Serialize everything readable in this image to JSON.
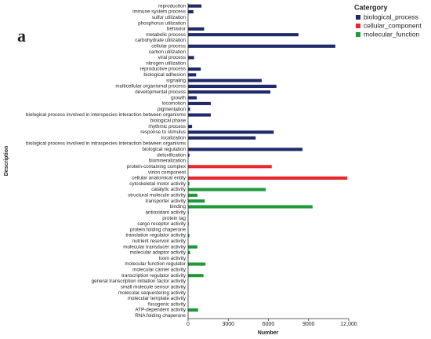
{
  "chart_data": {
    "type": "barh",
    "panel_label": "a",
    "y_label": "Description",
    "x_label": "Number",
    "legend_title": "Catergory",
    "legend_position": "top-right",
    "categories": [
      "reproduction",
      "immune system process",
      "sulfur utilization",
      "phosphorus utilization",
      "behavior",
      "metabolic process",
      "carbohydrate utilization",
      "cellular process",
      "carbon utilization",
      "viral process",
      "nitrogen utilization",
      "reproductive process",
      "biological adhesion",
      "signaling",
      "multicellular organismal process",
      "developmental process",
      "growth",
      "locomotion",
      "pigmentation",
      "biological process involved in interspecies interaction between organisms",
      "biological phase",
      "rhythmic process",
      "response to stimulus",
      "localization",
      "biological process involved in intraspecies interaction between organisms",
      "biological regulation",
      "detoxification",
      "biomineralization",
      "protein-containing complex",
      "virion component",
      "cellular anatomical entity",
      "cytoskeletal motor activity",
      "catalytic activity",
      "structural molecule activity",
      "transporter activity",
      "binding",
      "antioxidant activity",
      "protein tag",
      "cargo receptor activity",
      "protein folding chaperone",
      "translation regulator activity",
      "nutrient reservoir activity",
      "molecular transducer activity",
      "molecular adaptor activity",
      "toxin activity",
      "molecular function regulator",
      "molecular carrier activity",
      "transcription regulator activity",
      "general transcription initiation factor activity",
      "small molecule sensor activity",
      "molecular sequestering activity",
      "molecular template activity",
      "fusogenic activity",
      "ATP-dependent activity",
      "RNA folding chaperone"
    ],
    "series": [
      {
        "name": "biological_process",
        "color": "#1f2a6b",
        "values": [
          1000,
          400,
          0,
          0,
          1200,
          8250,
          0,
          11000,
          0,
          450,
          0,
          950,
          600,
          5500,
          6600,
          6150,
          650,
          1700,
          150,
          1700,
          0,
          300,
          6400,
          5050,
          0,
          8550,
          100,
          0,
          null,
          null,
          null,
          null,
          null,
          null,
          null,
          null,
          null,
          null,
          null,
          null,
          null,
          null,
          null,
          null,
          null,
          null,
          null,
          null,
          null,
          null,
          null,
          null,
          null,
          null,
          null
        ]
      },
      {
        "name": "cellular_component",
        "color": "#e8262b",
        "values": [
          null,
          null,
          null,
          null,
          null,
          null,
          null,
          null,
          null,
          null,
          null,
          null,
          null,
          null,
          null,
          null,
          null,
          null,
          null,
          null,
          null,
          null,
          null,
          null,
          null,
          null,
          null,
          null,
          6250,
          0,
          11900,
          null,
          null,
          null,
          null,
          null,
          null,
          null,
          null,
          null,
          null,
          null,
          null,
          null,
          null,
          null,
          null,
          null,
          null,
          null,
          null,
          null,
          null,
          null,
          null
        ]
      },
      {
        "name": "molecular_function",
        "color": "#1e9a3a",
        "values": [
          null,
          null,
          null,
          null,
          null,
          null,
          null,
          null,
          null,
          null,
          null,
          null,
          null,
          null,
          null,
          null,
          null,
          null,
          null,
          null,
          null,
          null,
          null,
          null,
          null,
          null,
          null,
          null,
          null,
          null,
          null,
          100,
          5800,
          700,
          1250,
          9300,
          50,
          0,
          50,
          0,
          100,
          0,
          700,
          150,
          0,
          1300,
          0,
          1150,
          0,
          0,
          0,
          0,
          0,
          750,
          0
        ]
      }
    ],
    "xlim": [
      0,
      12000
    ],
    "xticks": [
      0,
      3000,
      6000,
      9000,
      {
        "value": 12000,
        "label": "12,000"
      }
    ]
  }
}
